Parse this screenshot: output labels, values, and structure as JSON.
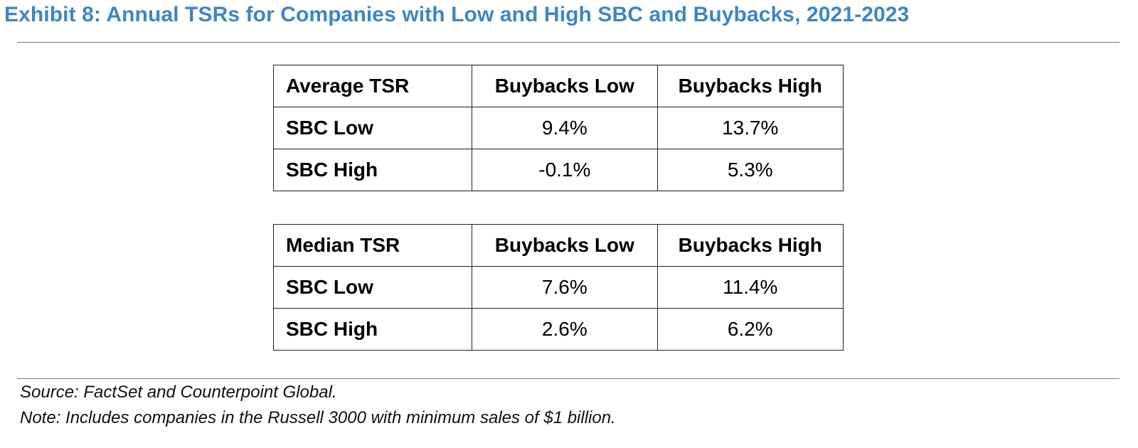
{
  "title": "Exhibit 8: Annual TSRs for Companies with Low and High SBC and Buybacks, 2021-2023",
  "colors": {
    "title": "#3d86c6",
    "rule": "#7a7a7a",
    "table_border": "#222222"
  },
  "tables": [
    {
      "corner_label": "Average TSR",
      "columns": [
        "Buybacks Low",
        "Buybacks High"
      ],
      "rows": [
        {
          "label": "SBC Low",
          "values": [
            "9.4%",
            "13.7%"
          ]
        },
        {
          "label": "SBC High",
          "values": [
            "-0.1%",
            "5.3%"
          ]
        }
      ]
    },
    {
      "corner_label": "Median TSR",
      "columns": [
        "Buybacks Low",
        "Buybacks High"
      ],
      "rows": [
        {
          "label": "SBC Low",
          "values": [
            "7.6%",
            "11.4%"
          ]
        },
        {
          "label": "SBC High",
          "values": [
            "2.6%",
            "6.2%"
          ]
        }
      ]
    }
  ],
  "source": "Source: FactSet and Counterpoint Global.",
  "note": "Note: Includes companies in the Russell 3000 with minimum sales of $1 billion."
}
